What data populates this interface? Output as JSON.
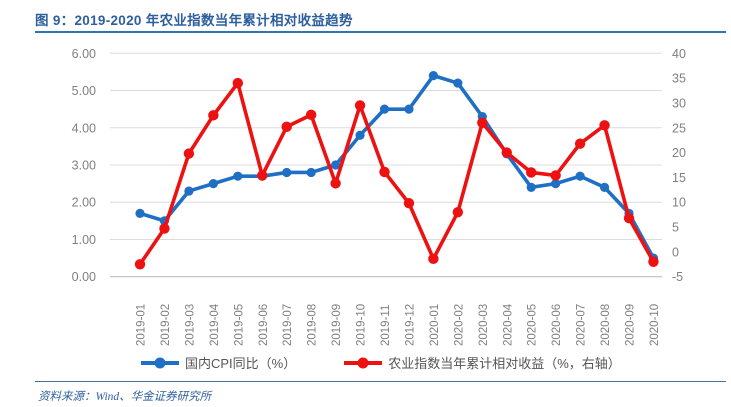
{
  "header": {
    "title": "图 9：2019-2020 年农业指数当年累计相对收益趋势"
  },
  "footer": {
    "source": "资料来源：Wind、华金证券研究所"
  },
  "colors": {
    "title_text": "#2d5f9e",
    "title_rule": "#2e75b6",
    "footer_rule": "#41719c",
    "footer_text": "#31609c",
    "series_cpi": "#1f6fc5",
    "series_agri": "#ee1111",
    "grid": "#dcdcdc",
    "axis_line": "#bfbfbf",
    "axis_text": "#808080",
    "legend_text": "#555555"
  },
  "chart_data": {
    "type": "line",
    "title": "2019-2020 年农业指数当年累计相对收益趋势",
    "x": [
      "2019-01",
      "2019-02",
      "2019-03",
      "2019-04",
      "2019-05",
      "2019-06",
      "2019-07",
      "2019-08",
      "2019-09",
      "2019-10",
      "2019-11",
      "2019-12",
      "2020-01",
      "2020-02",
      "2020-03",
      "2020-04",
      "2020-05",
      "2020-06",
      "2020-07",
      "2020-08",
      "2020-09",
      "2020-10"
    ],
    "series": [
      {
        "name": "国内CPI同比（%）",
        "axis": "left",
        "color_key": "series_cpi",
        "marker_radius": 4.6,
        "values": [
          1.7,
          1.5,
          2.3,
          2.5,
          2.7,
          2.7,
          2.8,
          2.8,
          3.0,
          3.8,
          4.5,
          4.5,
          5.4,
          5.2,
          4.3,
          3.3,
          2.4,
          2.5,
          2.7,
          2.4,
          1.7,
          0.5
        ]
      },
      {
        "name": "农业指数当年累计相对收益（%，右轴）",
        "axis": "right",
        "color_key": "series_agri",
        "marker_radius": 5.2,
        "values": [
          -2.5,
          4.7,
          19.8,
          27.5,
          34.0,
          15.4,
          25.2,
          27.6,
          13.8,
          29.5,
          16.1,
          9.8,
          -1.4,
          8.0,
          26.0,
          20.0,
          16.0,
          15.4,
          21.8,
          25.5,
          6.8,
          -2.0
        ]
      }
    ],
    "left_axis": {
      "min": 0,
      "max": 6,
      "ticks": [
        "6.00",
        "5.00",
        "4.00",
        "3.00",
        "2.00",
        "1.00",
        "0.00"
      ]
    },
    "right_axis": {
      "min": -5,
      "max": 40,
      "ticks": [
        "40",
        "35",
        "30",
        "25",
        "20",
        "15",
        "10",
        "5",
        "0",
        "-5"
      ]
    },
    "grid": true,
    "legend_position": "bottom"
  }
}
